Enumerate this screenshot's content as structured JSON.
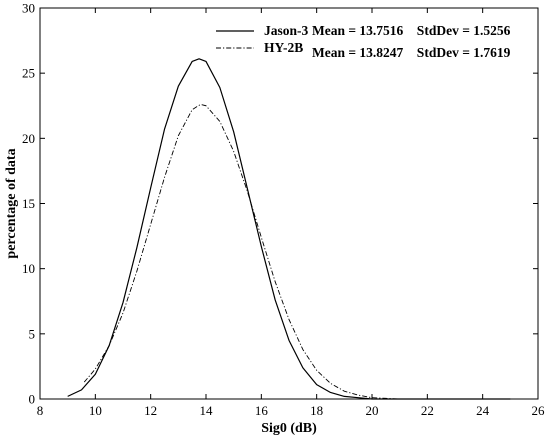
{
  "chart_data": {
    "type": "line",
    "xlabel": "Sig0 (dB)",
    "ylabel": "percentage of data",
    "xlim": [
      8,
      26
    ],
    "ylim": [
      0,
      30
    ],
    "xticks": [
      "8",
      "10",
      "12",
      "14",
      "16",
      "18",
      "20",
      "22",
      "24",
      "26"
    ],
    "yticks": [
      "0",
      "5",
      "10",
      "15",
      "20",
      "25",
      "30"
    ],
    "legend_position": "top-right",
    "grid": false,
    "series": [
      {
        "name": "Jason-3",
        "stats": "Mean = 13.7516    StdDev = 1.5256",
        "style": "solid",
        "color": "#000000",
        "x": [
          9.0,
          9.5,
          10.0,
          10.5,
          11.0,
          11.5,
          12.0,
          12.5,
          13.0,
          13.5,
          13.75,
          14.0,
          14.5,
          15.0,
          15.5,
          16.0,
          16.5,
          17.0,
          17.5,
          18.0,
          18.5,
          19.0,
          19.5,
          20.0,
          21.0,
          22.0,
          23.0,
          24.0,
          25.0
        ],
        "y": [
          0.2,
          0.7,
          1.9,
          4.1,
          7.4,
          11.6,
          16.2,
          20.7,
          24.0,
          25.9,
          26.1,
          25.9,
          23.9,
          20.5,
          16.1,
          11.7,
          7.6,
          4.5,
          2.4,
          1.1,
          0.5,
          0.2,
          0.1,
          0.0,
          0.0,
          0.0,
          0.0,
          0.0,
          0.0
        ]
      },
      {
        "name": "HY-2B",
        "stats": "Mean = 13.8247    StdDev = 1.7619",
        "style": "dashdot",
        "color": "#000000",
        "x": [
          9.6,
          10.0,
          10.5,
          11.0,
          11.5,
          12.0,
          12.5,
          13.0,
          13.5,
          13.8,
          14.0,
          14.5,
          15.0,
          15.5,
          16.0,
          16.5,
          17.0,
          17.5,
          18.0,
          18.5,
          19.0,
          19.5,
          20.0,
          20.5,
          21.0,
          22.0,
          23.0,
          24.0,
          25.0
        ],
        "y": [
          1.3,
          2.3,
          4.1,
          6.6,
          9.8,
          13.4,
          17.0,
          20.2,
          22.2,
          22.6,
          22.5,
          21.3,
          19.0,
          15.9,
          12.4,
          9.0,
          6.1,
          3.8,
          2.2,
          1.2,
          0.6,
          0.3,
          0.1,
          0.05,
          0.0,
          0.0,
          0.0,
          0.0,
          0.0
        ]
      }
    ]
  }
}
